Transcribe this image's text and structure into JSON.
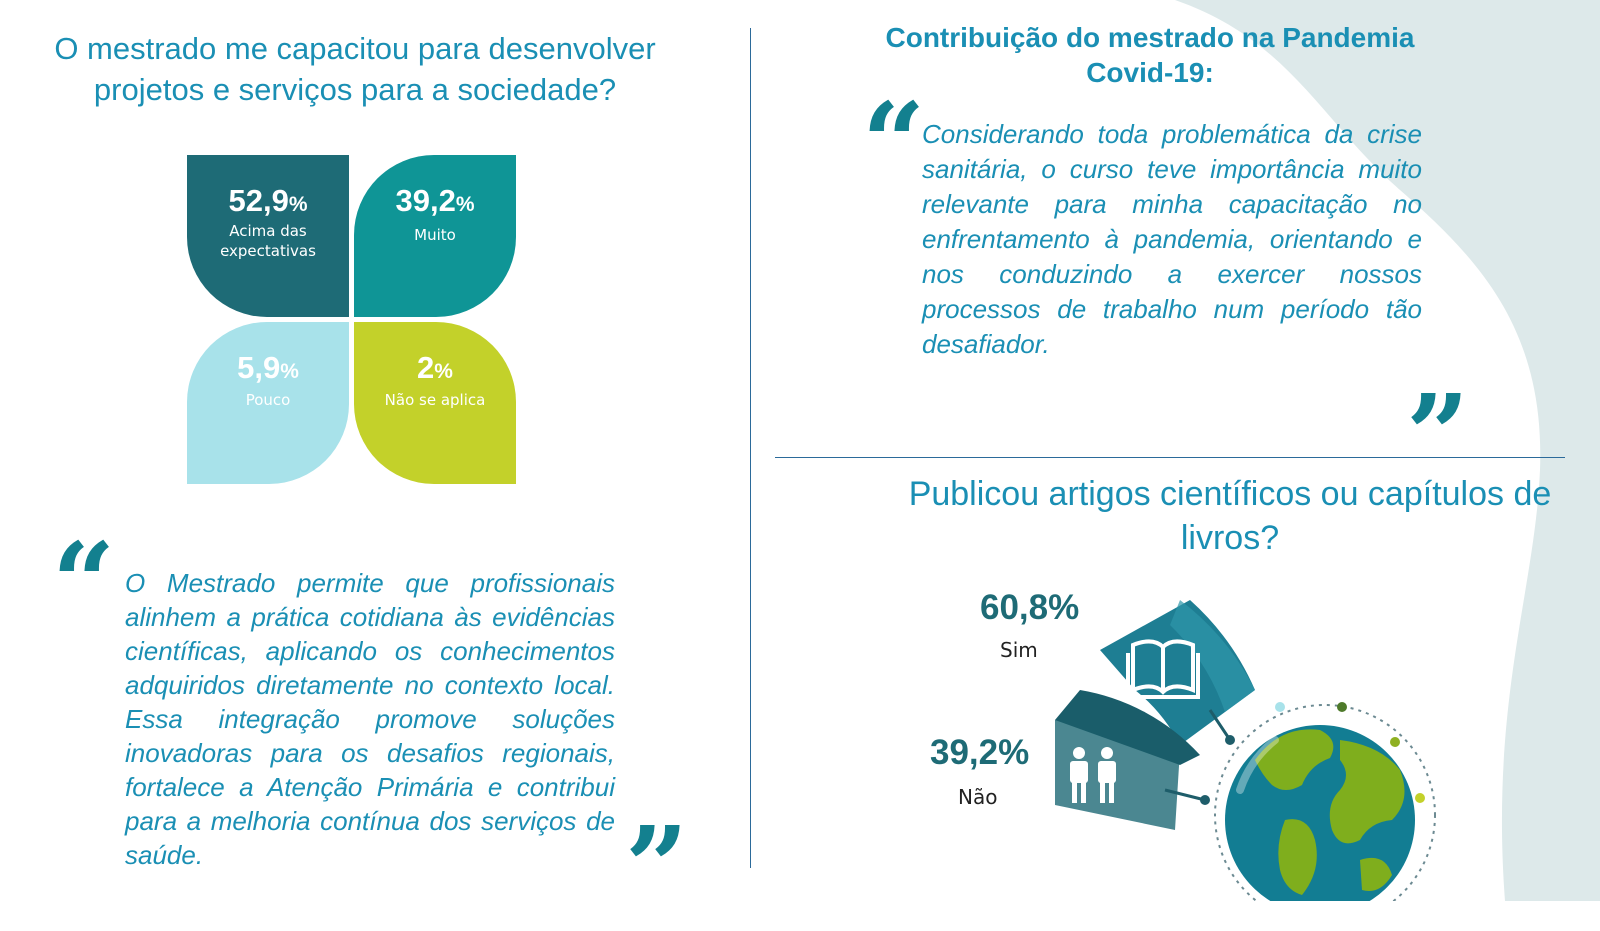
{
  "left": {
    "question": "O mestrado me capacitou para desenvolver projetos  e serviços para a sociedade?",
    "petals": [
      {
        "value": "52,9",
        "unit": "%",
        "label": "Acima das expectativas",
        "color": "#1e6b76"
      },
      {
        "value": "39,2",
        "unit": "%",
        "label": "Muito",
        "color": "#0f9596"
      },
      {
        "value": "5,9",
        "unit": "%",
        "label": "Pouco",
        "color": "#a8e2ea"
      },
      {
        "value": "2",
        "unit": "%",
        "label": "Não se aplica",
        "color": "#c3d12a"
      }
    ],
    "quote": "O Mestrado permite que profissionais alinhem a prática cotidiana às evidências científicas, aplicando os conhecimentos adquiridos diretamente no contexto local. Essa integração promove soluções inovadoras para os desafios regionais, fortalece a Atenção Primária e contribui para a melhoria contínua dos serviços de saúde."
  },
  "right": {
    "pandemic_title": "Contribuição do mestrado na Pandemia Covid-19:",
    "pandemic_quote": "Considerando toda problemática da crise sanitária, o curso teve importância muito relevante para minha capacitação no enfrentamento à pandemia, orientando e nos conduzindo a exercer nossos processos de trabalho num período tão desafiador.",
    "publications_question": "Publicou artigos científicos ou capítulos de livros?",
    "publications": [
      {
        "value": "60,8%",
        "label": "Sim",
        "icon": "book-icon"
      },
      {
        "value": "39,2%",
        "label": "Não",
        "icon": "people-icon"
      }
    ]
  },
  "quote_open": "“",
  "quote_close": "”",
  "colors": {
    "accent": "#1a8fb4",
    "teal_dark": "#1e6b76",
    "background_blob": "#dde9ea"
  }
}
